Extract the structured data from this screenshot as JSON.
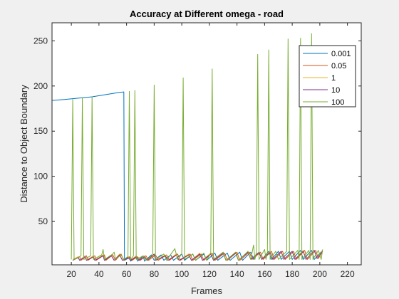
{
  "chart_data": {
    "type": "line",
    "title": "Accuracy at Different omega - road",
    "xlabel": "Frames",
    "ylabel": "Distance to Object Boundary",
    "xlim": [
      6,
      230
    ],
    "ylim": [
      2,
      270
    ],
    "xticks": [
      "20",
      "40",
      "60",
      "80",
      "100",
      "120",
      "140",
      "160",
      "180",
      "200",
      "220"
    ],
    "yticks": [
      "50",
      "100",
      "150",
      "200",
      "250"
    ],
    "grid": false,
    "legend": "top-right",
    "series": [
      {
        "name": "0.001",
        "color": "#0072bd",
        "points": [
          [
            6,
            184
          ],
          [
            15,
            185
          ],
          [
            25,
            186.5
          ],
          [
            35,
            188
          ],
          [
            45,
            190.5
          ],
          [
            55,
            193
          ],
          [
            58,
            193.5
          ],
          [
            58.5,
            7
          ],
          [
            62,
            10
          ],
          [
            63,
            6
          ],
          [
            67,
            11
          ],
          [
            68,
            6
          ],
          [
            72,
            12
          ],
          [
            73,
            6
          ],
          [
            78,
            13
          ],
          [
            80,
            7
          ],
          [
            85,
            13
          ],
          [
            87,
            7
          ],
          [
            92,
            13
          ],
          [
            94,
            7
          ],
          [
            100,
            14
          ],
          [
            102,
            7
          ],
          [
            108,
            14
          ],
          [
            110,
            7
          ],
          [
            116,
            14
          ],
          [
            118,
            7
          ],
          [
            124,
            15
          ],
          [
            126,
            7
          ],
          [
            133,
            15
          ],
          [
            135,
            7
          ],
          [
            142,
            16
          ],
          [
            144,
            7
          ],
          [
            150,
            16
          ],
          [
            152,
            8
          ],
          [
            156,
            16
          ],
          [
            158,
            8
          ],
          [
            163,
            17
          ],
          [
            165,
            8
          ],
          [
            170,
            17
          ],
          [
            172,
            8
          ],
          [
            178,
            17
          ],
          [
            180,
            8
          ],
          [
            186,
            18
          ],
          [
            188,
            8
          ],
          [
            194,
            18
          ],
          [
            196,
            8
          ],
          [
            202,
            18
          ]
        ]
      },
      {
        "name": "0.05",
        "color": "#d95319",
        "points": [
          [
            22,
            8
          ],
          [
            26,
            11
          ],
          [
            27,
            7
          ],
          [
            31,
            12
          ],
          [
            32,
            7
          ],
          [
            37,
            12
          ],
          [
            38,
            7
          ],
          [
            44,
            13
          ],
          [
            45,
            7
          ],
          [
            50,
            13
          ],
          [
            52,
            7
          ],
          [
            56,
            14
          ],
          [
            58,
            7
          ],
          [
            62,
            11
          ],
          [
            64,
            7
          ],
          [
            68,
            11
          ],
          [
            70,
            7
          ],
          [
            74,
            12
          ],
          [
            76,
            7
          ],
          [
            81,
            13
          ],
          [
            83,
            7
          ],
          [
            89,
            13
          ],
          [
            91,
            7
          ],
          [
            97,
            14
          ],
          [
            99,
            7
          ],
          [
            106,
            14
          ],
          [
            108,
            7
          ],
          [
            114,
            14
          ],
          [
            116,
            7
          ],
          [
            122,
            15
          ],
          [
            124,
            7
          ],
          [
            131,
            15
          ],
          [
            133,
            7
          ],
          [
            140,
            16
          ],
          [
            142,
            7
          ],
          [
            149,
            16
          ],
          [
            151,
            8
          ],
          [
            157,
            16
          ],
          [
            159,
            8
          ],
          [
            165,
            17
          ],
          [
            167,
            8
          ],
          [
            173,
            17
          ],
          [
            175,
            8
          ],
          [
            181,
            17
          ],
          [
            183,
            8
          ],
          [
            189,
            18
          ],
          [
            191,
            8
          ],
          [
            197,
            18
          ],
          [
            199,
            9
          ],
          [
            202,
            17
          ]
        ]
      },
      {
        "name": "1",
        "color": "#edb120",
        "points": [
          [
            21,
            8
          ],
          [
            25,
            11
          ],
          [
            26,
            7
          ],
          [
            30,
            12
          ],
          [
            31,
            7
          ],
          [
            36,
            12
          ],
          [
            37,
            7
          ],
          [
            43,
            13
          ],
          [
            44,
            7
          ],
          [
            49,
            13
          ],
          [
            51,
            7
          ],
          [
            55,
            14
          ],
          [
            57,
            7
          ],
          [
            61,
            11
          ],
          [
            63,
            7
          ],
          [
            67,
            12
          ],
          [
            69,
            7
          ],
          [
            73,
            12
          ],
          [
            75,
            7
          ],
          [
            80,
            13
          ],
          [
            82,
            7
          ],
          [
            88,
            13
          ],
          [
            90,
            7
          ],
          [
            96,
            14
          ],
          [
            98,
            7
          ],
          [
            105,
            14
          ],
          [
            107,
            7
          ],
          [
            113,
            15
          ],
          [
            115,
            7
          ],
          [
            121,
            15
          ],
          [
            123,
            7
          ],
          [
            130,
            15
          ],
          [
            132,
            7
          ],
          [
            139,
            16
          ],
          [
            141,
            7
          ],
          [
            148,
            16
          ],
          [
            150,
            8
          ],
          [
            156,
            16
          ],
          [
            158,
            8
          ],
          [
            164,
            17
          ],
          [
            166,
            8
          ],
          [
            172,
            17
          ],
          [
            174,
            8
          ],
          [
            180,
            17
          ],
          [
            182,
            8
          ],
          [
            188,
            18
          ],
          [
            190,
            8
          ],
          [
            196,
            18
          ],
          [
            198,
            9
          ],
          [
            202,
            18
          ]
        ]
      },
      {
        "name": "10",
        "color": "#7e2f8e",
        "points": [
          [
            21,
            7
          ],
          [
            25,
            10
          ],
          [
            26,
            7
          ],
          [
            30,
            11
          ],
          [
            31,
            7
          ],
          [
            36,
            11
          ],
          [
            37,
            7
          ],
          [
            43,
            12
          ],
          [
            44,
            7
          ],
          [
            49,
            12
          ],
          [
            51,
            7
          ],
          [
            55,
            13
          ],
          [
            57,
            7
          ],
          [
            61,
            10
          ],
          [
            63,
            7
          ],
          [
            67,
            11
          ],
          [
            69,
            7
          ],
          [
            73,
            11
          ],
          [
            75,
            7
          ],
          [
            80,
            14
          ],
          [
            81,
            7
          ],
          [
            88,
            12
          ],
          [
            90,
            7
          ],
          [
            96,
            13
          ],
          [
            98,
            7
          ],
          [
            105,
            13
          ],
          [
            107,
            7
          ],
          [
            113,
            14
          ],
          [
            115,
            7
          ],
          [
            121,
            14
          ],
          [
            123,
            7
          ],
          [
            130,
            15
          ],
          [
            132,
            7
          ],
          [
            139,
            15
          ],
          [
            141,
            7
          ],
          [
            148,
            16
          ],
          [
            150,
            8
          ],
          [
            156,
            16
          ],
          [
            158,
            8
          ],
          [
            164,
            16
          ],
          [
            166,
            8
          ],
          [
            172,
            17
          ],
          [
            174,
            8
          ],
          [
            180,
            17
          ],
          [
            182,
            8
          ],
          [
            188,
            17
          ],
          [
            190,
            8
          ],
          [
            196,
            18
          ],
          [
            198,
            9
          ],
          [
            202,
            17
          ]
        ]
      },
      {
        "name": "100",
        "color": "#77ac30",
        "points": [
          [
            20,
            8
          ],
          [
            21,
            185
          ],
          [
            22,
            8
          ],
          [
            27,
            12
          ],
          [
            28,
            187
          ],
          [
            29,
            8
          ],
          [
            34,
            12
          ],
          [
            35,
            188
          ],
          [
            36,
            8
          ],
          [
            42,
            13
          ],
          [
            43,
            19
          ],
          [
            44,
            8
          ],
          [
            50,
            14
          ],
          [
            51,
            16
          ],
          [
            52,
            8
          ],
          [
            56,
            13
          ],
          [
            58,
            8
          ],
          [
            61,
            11
          ],
          [
            62,
            194
          ],
          [
            63,
            8
          ],
          [
            65,
            12
          ],
          [
            66,
            195
          ],
          [
            67,
            8
          ],
          [
            72,
            12
          ],
          [
            74,
            7
          ],
          [
            79,
            13
          ],
          [
            80,
            201
          ],
          [
            81,
            8
          ],
          [
            87,
            14
          ],
          [
            89,
            7
          ],
          [
            95,
            20
          ],
          [
            97,
            8
          ],
          [
            100,
            14
          ],
          [
            101,
            209
          ],
          [
            102,
            8
          ],
          [
            108,
            14
          ],
          [
            110,
            7
          ],
          [
            116,
            15
          ],
          [
            118,
            7
          ],
          [
            121,
            15
          ],
          [
            122,
            219
          ],
          [
            123,
            8
          ],
          [
            130,
            16
          ],
          [
            132,
            7
          ],
          [
            139,
            16
          ],
          [
            141,
            7
          ],
          [
            148,
            17
          ],
          [
            150,
            8
          ],
          [
            152,
            24
          ],
          [
            153,
            8
          ],
          [
            154,
            16
          ],
          [
            155,
            235
          ],
          [
            156,
            8
          ],
          [
            160,
            19
          ],
          [
            161,
            8
          ],
          [
            162,
            16
          ],
          [
            163,
            240
          ],
          [
            164,
            8
          ],
          [
            168,
            17
          ],
          [
            170,
            8
          ],
          [
            176,
            17
          ],
          [
            177,
            252
          ],
          [
            178,
            8
          ],
          [
            184,
            18
          ],
          [
            185,
            8
          ],
          [
            186,
            253
          ],
          [
            187,
            8
          ],
          [
            192,
            18
          ],
          [
            193,
            8
          ],
          [
            194,
            258
          ],
          [
            195,
            8
          ],
          [
            199,
            18
          ],
          [
            201,
            8
          ],
          [
            202,
            19
          ]
        ]
      }
    ]
  }
}
